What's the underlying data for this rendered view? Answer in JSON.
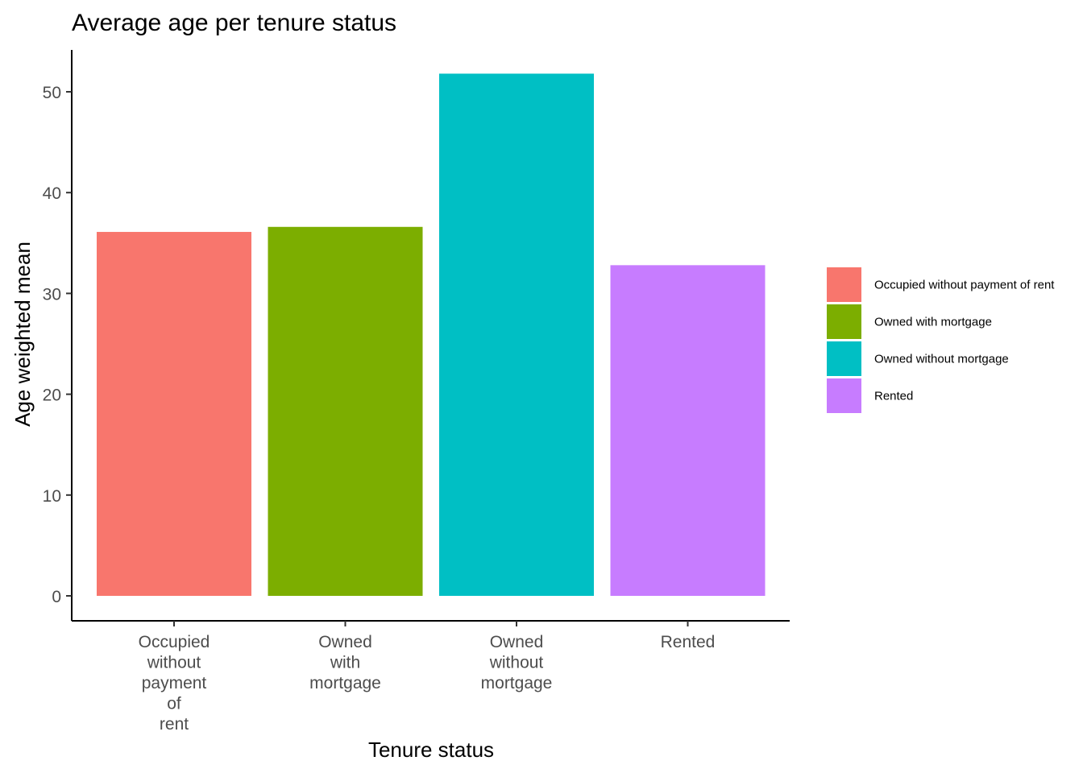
{
  "chart_data": {
    "type": "bar",
    "title": "Average age per tenure status",
    "xlabel": "Tenure status",
    "ylabel": "Age weighted mean",
    "categories": [
      "Occupied without payment of rent",
      "Owned with mortgage",
      "Owned without mortgage",
      "Rented"
    ],
    "category_tick_lines": [
      [
        "Occupied",
        "without",
        "payment",
        "of",
        "rent"
      ],
      [
        "Owned",
        "with",
        "mortgage"
      ],
      [
        "Owned",
        "without",
        "mortgage"
      ],
      [
        "Rented"
      ]
    ],
    "values": [
      36.1,
      36.6,
      51.8,
      32.8
    ],
    "colors": [
      "#F8766D",
      "#7CAE00",
      "#00BFC4",
      "#C77CFF"
    ],
    "ylim": [
      0,
      54.5
    ],
    "yticks": [
      0,
      10,
      20,
      30,
      40,
      50
    ],
    "grid": false,
    "legend": {
      "placement": "right",
      "entries": [
        "Occupied without payment of rent",
        "Owned with mortgage",
        "Owned without mortgage",
        "Rented"
      ]
    }
  }
}
